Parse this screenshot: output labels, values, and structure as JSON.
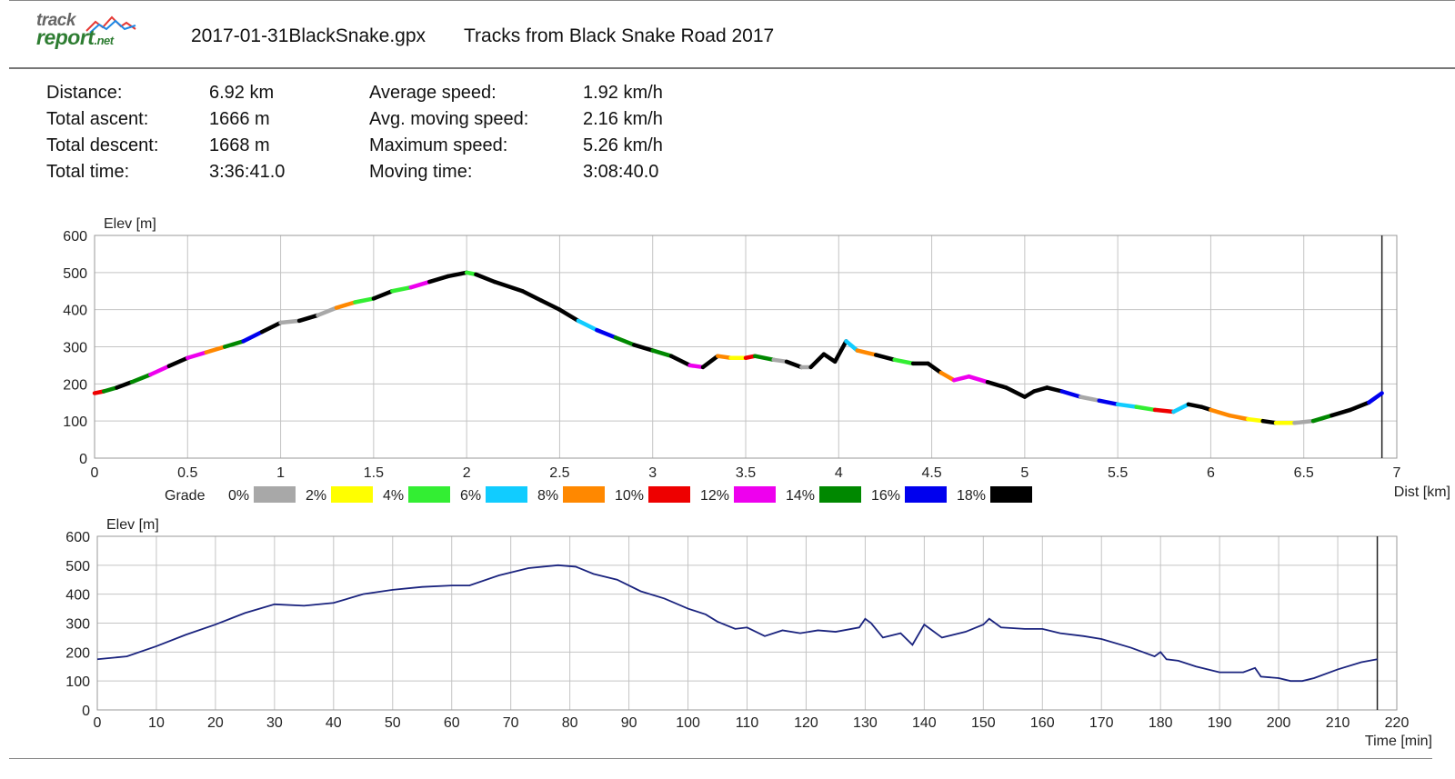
{
  "header": {
    "logo_line1": "track",
    "logo_line2": "report",
    "logo_suffix": ".net",
    "file_name": "2017-01-31BlackSnake.gpx",
    "title": "Tracks from Black Snake Road 2017"
  },
  "stats": [
    {
      "label": "Distance:",
      "value": "6.92 km"
    },
    {
      "label": "Total ascent:",
      "value": "1666 m"
    },
    {
      "label": "Total descent:",
      "value": "1668 m"
    },
    {
      "label": "Total time:",
      "value": "3:36:41.0"
    },
    {
      "label": "Average speed:",
      "value": "1.92 km/h"
    },
    {
      "label": "Avg. moving speed:",
      "value": "2.16 km/h"
    },
    {
      "label": "Maximum speed:",
      "value": "5.26 km/h"
    },
    {
      "label": "Moving time:",
      "value": "3:08:40.0"
    }
  ],
  "legend": {
    "title": "Grade",
    "items": [
      {
        "label": "0%",
        "color": "#a8a8a8"
      },
      {
        "label": "2%",
        "color": "#ffff00"
      },
      {
        "label": "4%",
        "color": "#33ee33"
      },
      {
        "label": "6%",
        "color": "#11ccff"
      },
      {
        "label": "8%",
        "color": "#ff8800"
      },
      {
        "label": "10%",
        "color": "#ee0000"
      },
      {
        "label": "12%",
        "color": "#ee00ee"
      },
      {
        "label": "14%",
        "color": "#008800"
      },
      {
        "label": "16%",
        "color": "#0000ee"
      },
      {
        "label": "18%",
        "color": "#000000"
      }
    ]
  },
  "chart_data": [
    {
      "type": "line",
      "ylabel": "Elev [m]",
      "xlabel": "Dist [km]",
      "xlim": [
        0,
        7
      ],
      "ylim": [
        0,
        600
      ],
      "xticks": [
        0,
        0.5,
        1,
        1.5,
        2,
        2.5,
        3,
        3.5,
        4,
        4.5,
        5,
        5.5,
        6,
        6.5,
        7
      ],
      "xtick_labels": [
        "0",
        "0.5",
        "1",
        "1.5",
        "2",
        "2.5",
        "3",
        "3.5",
        "4",
        "4.5",
        "5",
        "5.5",
        "6",
        "6.5",
        "7"
      ],
      "yticks": [
        0,
        100,
        200,
        300,
        400,
        500,
        600
      ],
      "ytick_labels": [
        "0",
        "100",
        "200",
        "300",
        "400",
        "500",
        "600"
      ],
      "end_marker_x": 6.92,
      "grid": true,
      "line_color": "#000000",
      "series": [
        {
          "x": [
            0,
            0.05,
            0.12,
            0.2,
            0.3,
            0.4,
            0.5,
            0.6,
            0.7,
            0.8,
            0.9,
            1.0,
            1.1,
            1.2,
            1.3,
            1.4,
            1.5,
            1.6,
            1.7,
            1.8,
            1.9,
            2.0,
            2.05,
            2.15,
            2.3,
            2.4,
            2.5,
            2.6,
            2.7,
            2.8,
            2.9,
            3.0,
            3.1,
            3.2,
            3.27,
            3.35,
            3.42,
            3.5,
            3.55,
            3.65,
            3.72,
            3.8,
            3.85,
            3.92,
            3.98,
            4.04,
            4.1,
            4.2,
            4.3,
            4.4,
            4.48,
            4.55,
            4.62,
            4.7,
            4.8,
            4.9,
            5.0,
            5.05,
            5.12,
            5.2,
            5.3,
            5.4,
            5.5,
            5.6,
            5.7,
            5.8,
            5.88,
            5.95,
            6.0,
            6.1,
            6.2,
            6.28,
            6.35,
            6.45,
            6.55,
            6.65,
            6.75,
            6.85,
            6.92
          ],
          "y": [
            175,
            180,
            190,
            205,
            225,
            248,
            270,
            285,
            300,
            315,
            340,
            365,
            370,
            385,
            405,
            420,
            430,
            450,
            460,
            475,
            490,
            500,
            495,
            475,
            450,
            425,
            400,
            370,
            345,
            325,
            305,
            290,
            275,
            250,
            245,
            275,
            270,
            270,
            275,
            265,
            260,
            245,
            245,
            280,
            260,
            315,
            290,
            278,
            265,
            255,
            255,
            230,
            210,
            220,
            205,
            190,
            165,
            180,
            190,
            180,
            165,
            155,
            145,
            138,
            130,
            125,
            145,
            138,
            130,
            115,
            105,
            100,
            95,
            95,
            100,
            115,
            130,
            150,
            175
          ],
          "grade_colors": [
            "#ee0000",
            "#008800",
            "#000000",
            "#008800",
            "#ee00ee",
            "#000000",
            "#ee00ee",
            "#ff8800",
            "#008800",
            "#0000ee",
            "#000000",
            "#a8a8a8",
            "#000000",
            "#a8a8a8",
            "#ff8800",
            "#33ee33",
            "#000000",
            "#33ee33",
            "#ee00ee",
            "#000000",
            "#000000",
            "#33ee33",
            "#000000",
            "#000000",
            "#000000",
            "#000000",
            "#000000",
            "#11ccff",
            "#0000ee",
            "#008800",
            "#000000",
            "#008800",
            "#000000",
            "#ee00ee",
            "#000000",
            "#ff8800",
            "#ffff00",
            "#ee0000",
            "#008800",
            "#a8a8a8",
            "#000000",
            "#a8a8a8",
            "#000000",
            "#000000",
            "#000000",
            "#11ccff",
            "#ff8800",
            "#000000",
            "#33ee33",
            "#000000",
            "#000000",
            "#ff8800",
            "#ee00ee",
            "#ee00ee",
            "#000000",
            "#000000",
            "#000000",
            "#000000",
            "#000000",
            "#0000ee",
            "#a8a8a8",
            "#0000ee",
            "#11ccff",
            "#33ee33",
            "#ee0000",
            "#11ccff",
            "#000000",
            "#000000",
            "#ff8800",
            "#ff8800",
            "#ffff00",
            "#000000",
            "#ffff00",
            "#a8a8a8",
            "#008800",
            "#000000",
            "#000000",
            "#0000ee"
          ]
        }
      ]
    },
    {
      "type": "line",
      "ylabel": "Elev [m]",
      "xlabel": "Time [min]",
      "xlim": [
        0,
        220
      ],
      "ylim": [
        0,
        600
      ],
      "xticks": [
        0,
        10,
        20,
        30,
        40,
        50,
        60,
        70,
        80,
        90,
        100,
        110,
        120,
        130,
        140,
        150,
        160,
        170,
        180,
        190,
        200,
        210,
        220
      ],
      "xtick_labels": [
        "0",
        "10",
        "20",
        "30",
        "40",
        "50",
        "60",
        "70",
        "80",
        "90",
        "100",
        "110",
        "120",
        "130",
        "140",
        "150",
        "160",
        "170",
        "180",
        "190",
        "200",
        "210",
        "220"
      ],
      "yticks": [
        0,
        100,
        200,
        300,
        400,
        500,
        600
      ],
      "ytick_labels": [
        "0",
        "100",
        "200",
        "300",
        "400",
        "500",
        "600"
      ],
      "end_marker_x": 216.7,
      "grid": true,
      "line_color": "#1a237e",
      "series": [
        {
          "x": [
            0,
            5,
            10,
            15,
            20,
            25,
            30,
            35,
            40,
            45,
            50,
            55,
            60,
            63,
            68,
            73,
            78,
            81,
            84,
            88,
            92,
            96,
            100,
            103,
            105,
            108,
            110,
            113,
            116,
            119,
            122,
            125,
            129,
            130,
            131,
            133,
            136,
            138,
            140,
            143,
            147,
            150,
            151,
            153,
            157,
            160,
            163,
            167,
            170,
            175,
            179,
            180,
            181,
            183,
            186,
            190,
            194,
            196,
            197,
            200,
            202,
            204,
            206,
            210,
            214,
            216.7
          ],
          "y": [
            175,
            185,
            220,
            260,
            295,
            335,
            365,
            360,
            370,
            400,
            415,
            425,
            430,
            430,
            465,
            490,
            500,
            495,
            470,
            450,
            410,
            385,
            350,
            330,
            305,
            280,
            285,
            255,
            275,
            265,
            275,
            270,
            285,
            315,
            300,
            250,
            265,
            225,
            295,
            250,
            270,
            295,
            315,
            285,
            280,
            280,
            265,
            255,
            245,
            215,
            185,
            200,
            175,
            170,
            150,
            130,
            130,
            145,
            115,
            110,
            100,
            100,
            110,
            140,
            165,
            175
          ]
        }
      ]
    }
  ]
}
